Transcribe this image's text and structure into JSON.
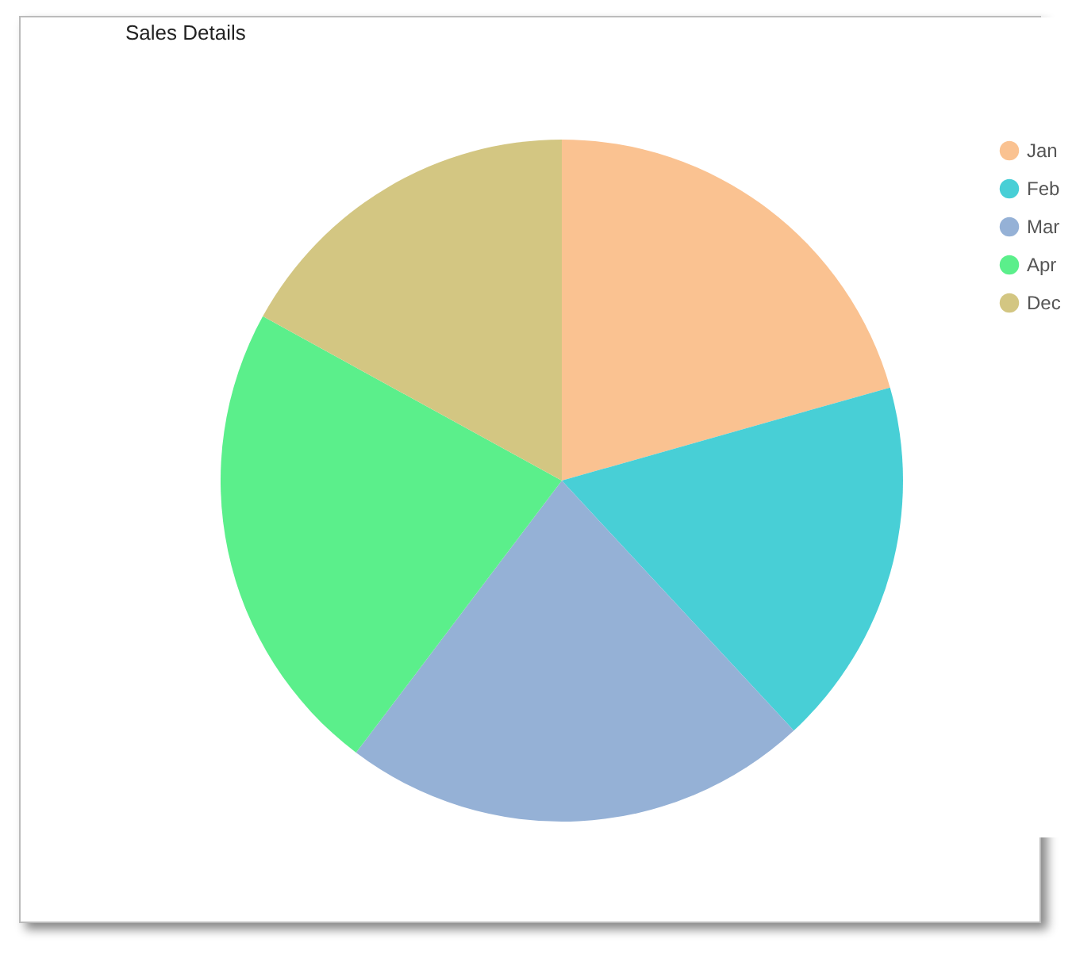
{
  "chart_data": {
    "type": "pie",
    "title": "Sales Details",
    "categories": [
      "Jan",
      "Feb",
      "Mar",
      "Apr",
      "Dec"
    ],
    "values": [
      20.6,
      17.5,
      22.2,
      22.7,
      17.0
    ],
    "colors": [
      "#fac291",
      "#48cfd6",
      "#95b1d6",
      "#5bef8b",
      "#d3c682"
    ],
    "legend": "right"
  }
}
